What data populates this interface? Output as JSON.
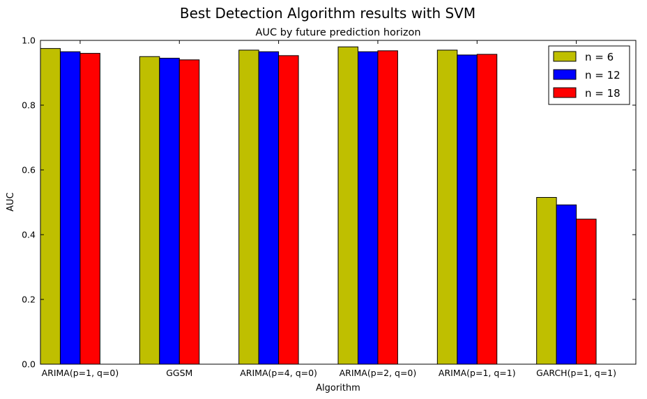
{
  "chart_data": {
    "type": "bar",
    "title": "Best Detection Algorithm results with SVM",
    "subtitle": "AUC by future prediction horizon",
    "xlabel": "Algorithm",
    "ylabel": "AUC",
    "ylim": [
      0,
      1.0
    ],
    "yticks": [
      "0.0",
      "0.2",
      "0.4",
      "0.6",
      "0.8",
      "1.0"
    ],
    "categories": [
      "ARIMA(p=1, q=0)",
      "GGSM",
      "ARIMA(p=4, q=0)",
      "ARIMA(p=2, q=0)",
      "ARIMA(p=1, q=1)",
      "GARCH(p=1, q=1)"
    ],
    "series": [
      {
        "name": "n = 6",
        "color": "#bfbf00",
        "values": [
          0.975,
          0.95,
          0.97,
          0.98,
          0.97,
          0.515
        ]
      },
      {
        "name": "n = 12",
        "color": "#0000ff",
        "values": [
          0.965,
          0.945,
          0.965,
          0.965,
          0.955,
          0.492
        ]
      },
      {
        "name": "n = 18",
        "color": "#ff0000",
        "values": [
          0.96,
          0.94,
          0.953,
          0.968,
          0.957,
          0.448
        ]
      }
    ],
    "legend_position": "top-right",
    "grid": false
  }
}
